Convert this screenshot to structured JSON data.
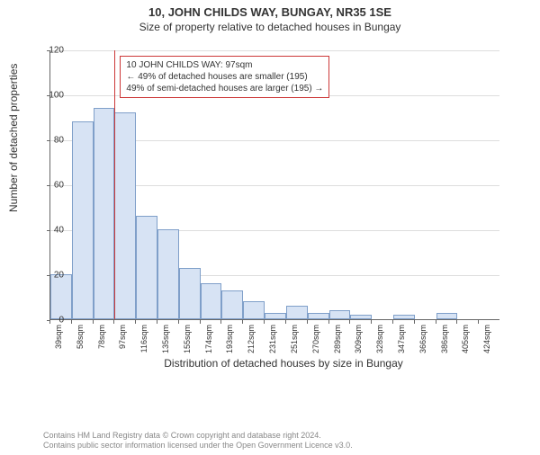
{
  "title_main": "10, JOHN CHILDS WAY, BUNGAY, NR35 1SE",
  "title_sub": "Size of property relative to detached houses in Bungay",
  "y_label": "Number of detached properties",
  "x_label": "Distribution of detached houses by size in Bungay",
  "chart": {
    "type": "histogram",
    "ylim": [
      0,
      120
    ],
    "ytick_step": 20,
    "bar_fill": "#d7e3f4",
    "bar_stroke": "#7f9fc9",
    "grid_color": "#dddddd",
    "axis_color": "#666666",
    "background_color": "#ffffff",
    "ref_line_color": "#cc3838",
    "ref_line_x": 97,
    "categories": [
      "39sqm",
      "58sqm",
      "78sqm",
      "97sqm",
      "116sqm",
      "135sqm",
      "155sqm",
      "174sqm",
      "193sqm",
      "212sqm",
      "231sqm",
      "251sqm",
      "270sqm",
      "289sqm",
      "309sqm",
      "328sqm",
      "347sqm",
      "366sqm",
      "386sqm",
      "405sqm",
      "424sqm"
    ],
    "values": [
      20,
      88,
      94,
      92,
      46,
      40,
      23,
      16,
      13,
      8,
      3,
      6,
      3,
      4,
      2,
      0,
      2,
      0,
      3,
      0,
      0
    ]
  },
  "annotation": {
    "line1": "10 JOHN CHILDS WAY: 97sqm",
    "line2": "← 49% of detached houses are smaller (195)",
    "line3": "49% of semi-detached houses are larger (195) →",
    "border_color": "#cc3838"
  },
  "footer": {
    "line1": "Contains HM Land Registry data © Crown copyright and database right 2024.",
    "line2": "Contains public sector information licensed under the Open Government Licence v3.0."
  }
}
